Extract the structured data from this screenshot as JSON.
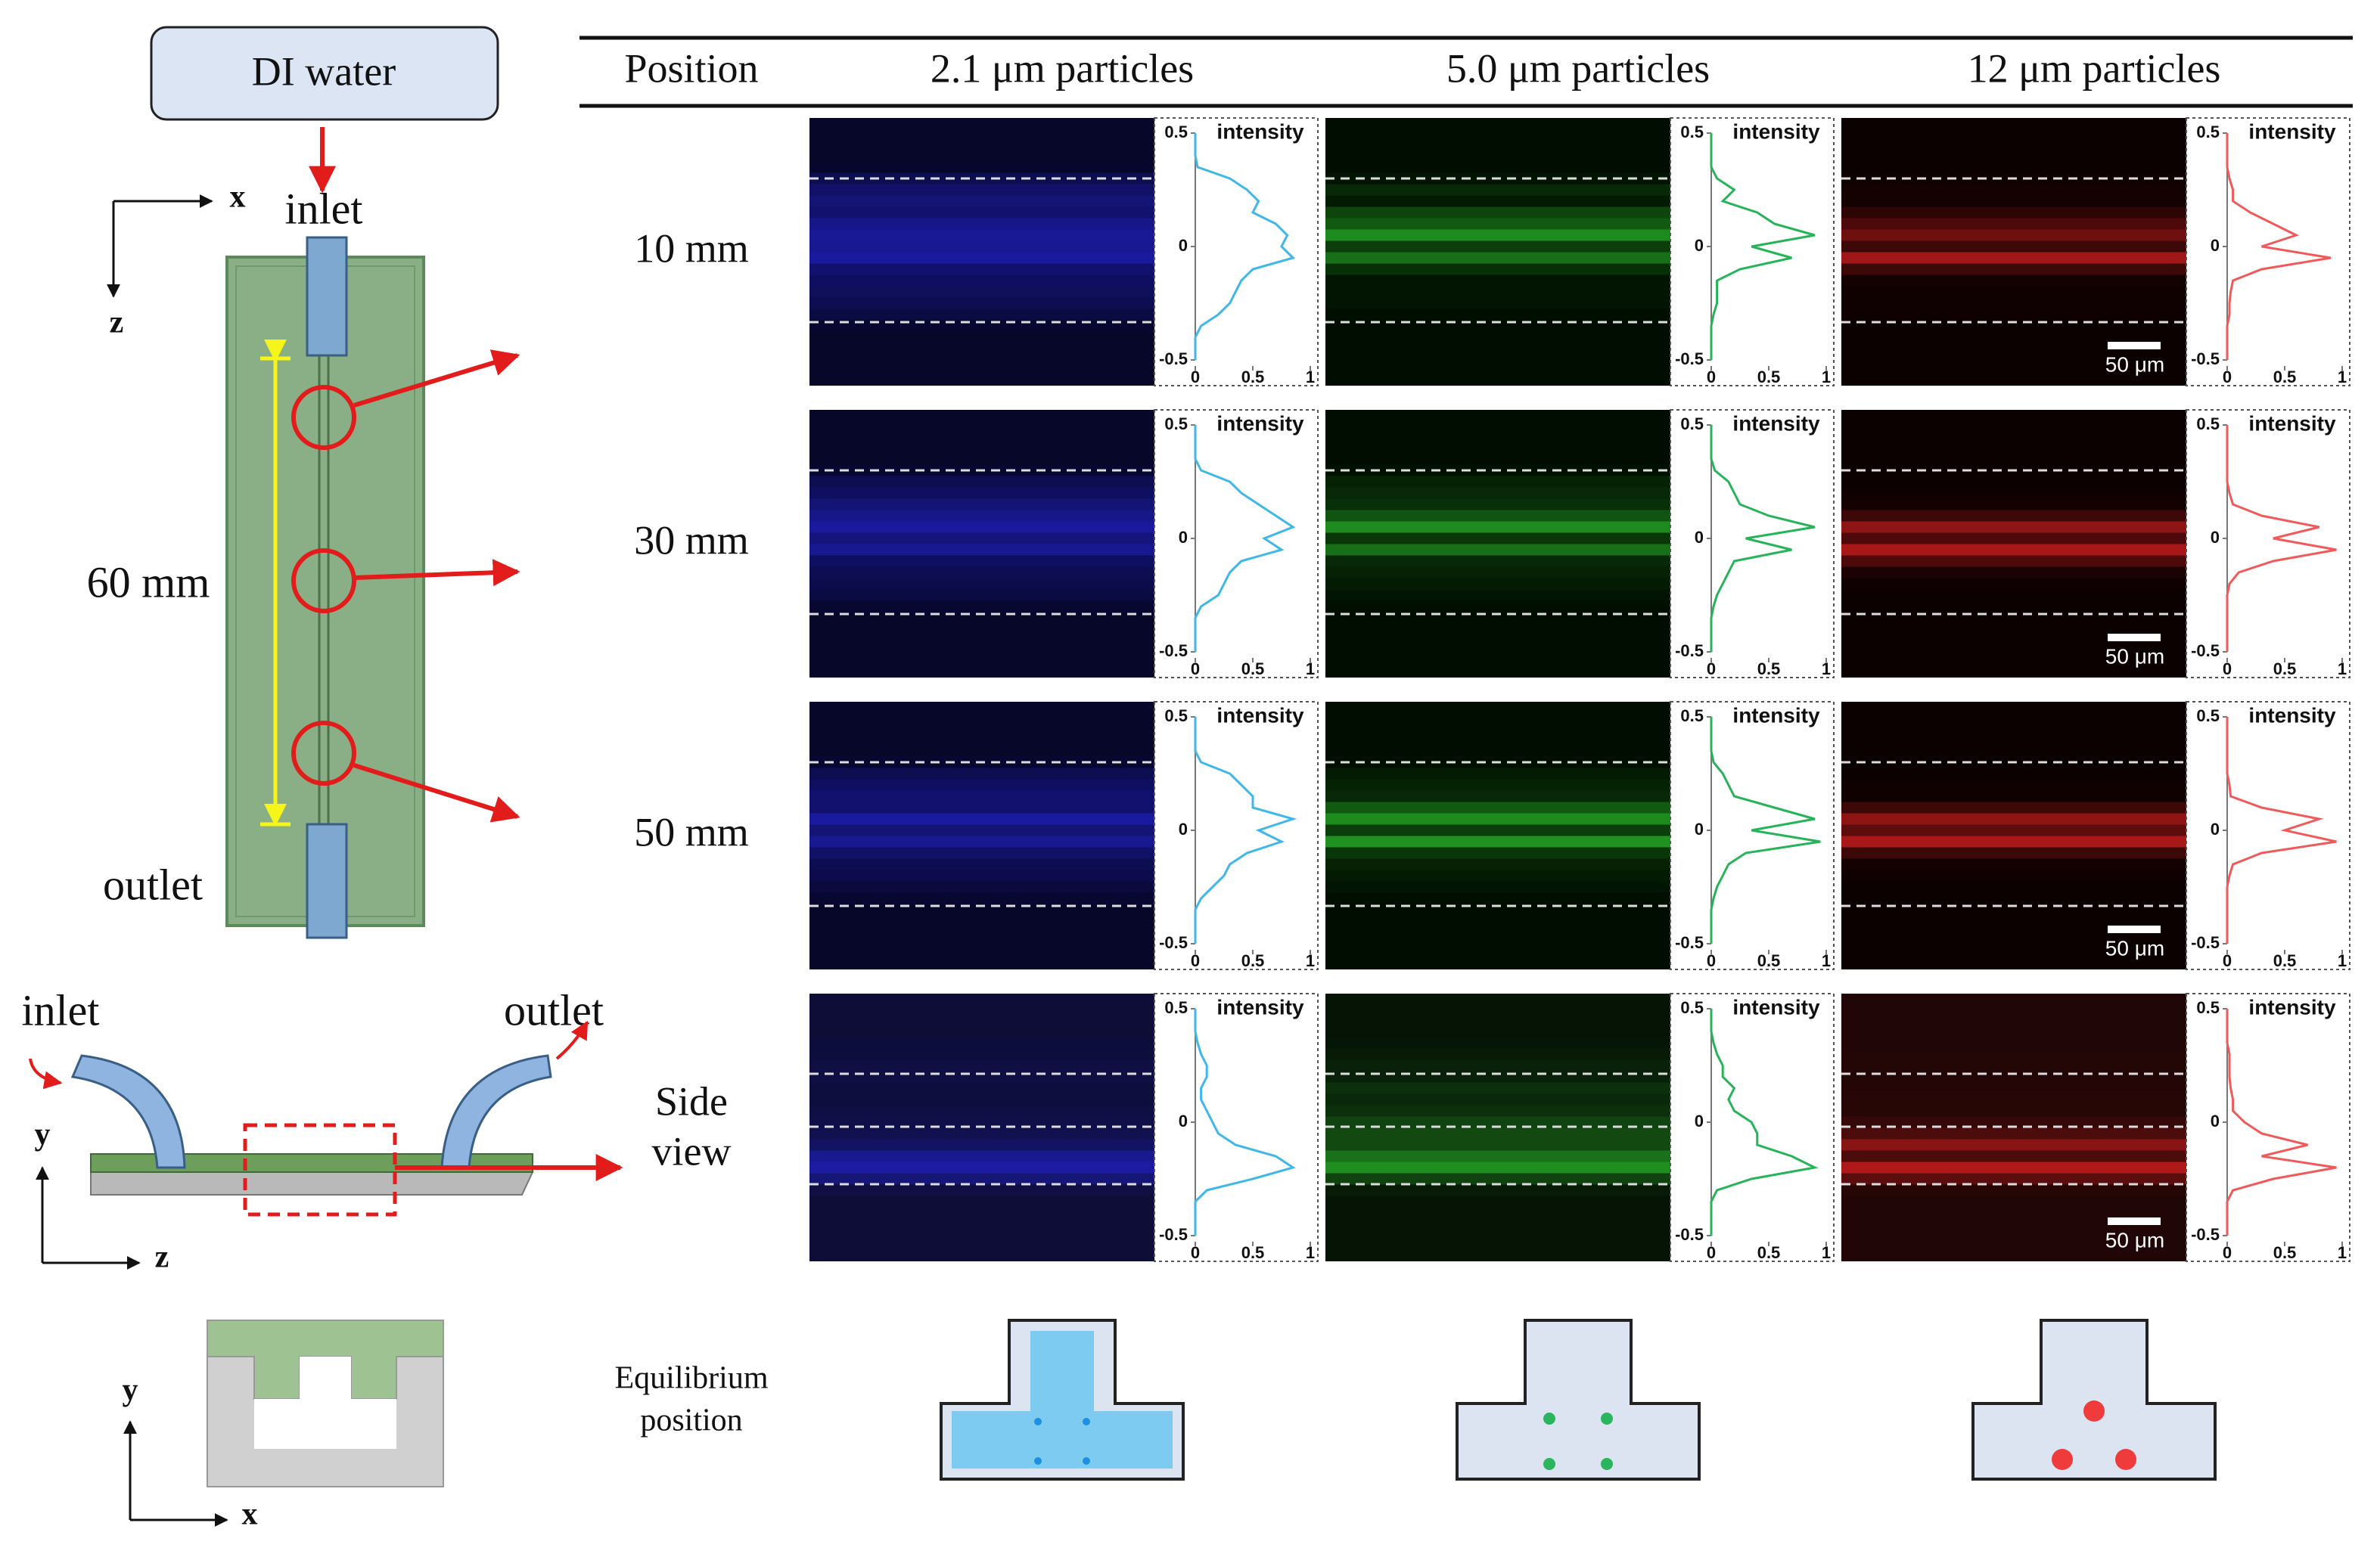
{
  "inlet_diagram": {
    "source": "DI water",
    "inlet": "inlet",
    "outlet": "outlet",
    "axis_x": "x",
    "axis_z": "z",
    "length": "60 mm"
  },
  "side_view": {
    "inlet": "inlet",
    "outlet": "outlet",
    "label": [
      "Side",
      "view"
    ],
    "axis_y": "y",
    "axis_z": "z"
  },
  "cross_section": {
    "axis_y": "y",
    "axis_x": "x"
  },
  "table": {
    "header": [
      "Position",
      "2.1 μm particles",
      "5.0 μm particles",
      "12 μm particles"
    ],
    "rows": [
      "10 mm",
      "30 mm",
      "50 mm"
    ]
  },
  "equilibrium_label": [
    "Equilibrium",
    "position"
  ],
  "scale_bar": "50 μm",
  "profile_axes": {
    "label": "intensity",
    "positions": [
      0.5,
      0.45,
      0.4,
      0.35,
      0.3,
      0.25,
      0.2,
      0.15,
      0.1,
      0.05,
      0,
      -0.05,
      -0.1,
      -0.15,
      -0.2,
      -0.25,
      -0.3,
      -0.35,
      -0.4,
      -0.45,
      -0.5
    ],
    "xlim": [
      0,
      1
    ],
    "xticks": [
      0,
      0.5,
      1
    ],
    "ylim": [
      -0.5,
      0.5
    ],
    "yticks": [
      0.5,
      0,
      -0.5
    ]
  },
  "colors": [
    "#3fb7e8",
    "#27b35a",
    "#f05a5a"
  ],
  "image_colors": [
    "#2626e0",
    "#2cc82c",
    "#e82222"
  ],
  "profiles": [
    [
      [
        0,
        0,
        0,
        0.02,
        0.3,
        0.45,
        0.55,
        0.5,
        0.7,
        0.8,
        0.75,
        0.85,
        0.5,
        0.4,
        0.35,
        0.3,
        0.2,
        0.05,
        0,
        0,
        0
      ],
      [
        0,
        0,
        0,
        0,
        0.05,
        0.2,
        0.1,
        0.4,
        0.55,
        0.9,
        0.35,
        0.7,
        0.25,
        0.05,
        0.05,
        0.05,
        0.02,
        0,
        0,
        0,
        0
      ],
      [
        0,
        0,
        0,
        0,
        0.02,
        0.05,
        0.05,
        0.2,
        0.4,
        0.6,
        0.3,
        0.9,
        0.3,
        0.05,
        0.03,
        0.02,
        0.02,
        0,
        0,
        0,
        0
      ]
    ],
    [
      [
        0,
        0,
        0,
        0,
        0.05,
        0.3,
        0.4,
        0.55,
        0.7,
        0.85,
        0.6,
        0.75,
        0.4,
        0.3,
        0.25,
        0.2,
        0.05,
        0,
        0,
        0,
        0
      ],
      [
        0,
        0,
        0,
        0,
        0.03,
        0.15,
        0.2,
        0.25,
        0.5,
        0.9,
        0.3,
        0.7,
        0.2,
        0.15,
        0.1,
        0.05,
        0.02,
        0,
        0,
        0,
        0
      ],
      [
        0,
        0,
        0,
        0,
        0,
        0,
        0.02,
        0.05,
        0.3,
        0.8,
        0.4,
        0.95,
        0.4,
        0.1,
        0.02,
        0,
        0,
        0,
        0,
        0,
        0
      ]
    ],
    [
      [
        0,
        0,
        0,
        0,
        0.05,
        0.3,
        0.4,
        0.5,
        0.5,
        0.85,
        0.55,
        0.75,
        0.45,
        0.3,
        0.25,
        0.15,
        0.05,
        0,
        0,
        0,
        0
      ],
      [
        0,
        0,
        0,
        0,
        0.02,
        0.1,
        0.15,
        0.2,
        0.55,
        0.9,
        0.35,
        0.95,
        0.3,
        0.15,
        0.1,
        0.05,
        0.02,
        0,
        0,
        0,
        0
      ],
      [
        0,
        0,
        0,
        0,
        0,
        0,
        0.02,
        0.03,
        0.3,
        0.8,
        0.5,
        0.95,
        0.3,
        0.05,
        0.02,
        0,
        0,
        0,
        0,
        0,
        0
      ]
    ],
    [
      [
        0,
        0,
        0,
        0.02,
        0.05,
        0.1,
        0.1,
        0.05,
        0.05,
        0.1,
        0.15,
        0.2,
        0.35,
        0.7,
        0.85,
        0.5,
        0.1,
        0,
        0,
        0,
        0
      ],
      [
        0,
        0,
        0,
        0.02,
        0.05,
        0.1,
        0.1,
        0.2,
        0.15,
        0.2,
        0.35,
        0.4,
        0.4,
        0.7,
        0.9,
        0.35,
        0.05,
        0,
        0,
        0,
        0
      ],
      [
        0,
        0,
        0,
        0,
        0.02,
        0.02,
        0.02,
        0.03,
        0.05,
        0.05,
        0.15,
        0.3,
        0.7,
        0.3,
        0.95,
        0.4,
        0.05,
        0,
        0,
        0,
        0
      ]
    ]
  ]
}
